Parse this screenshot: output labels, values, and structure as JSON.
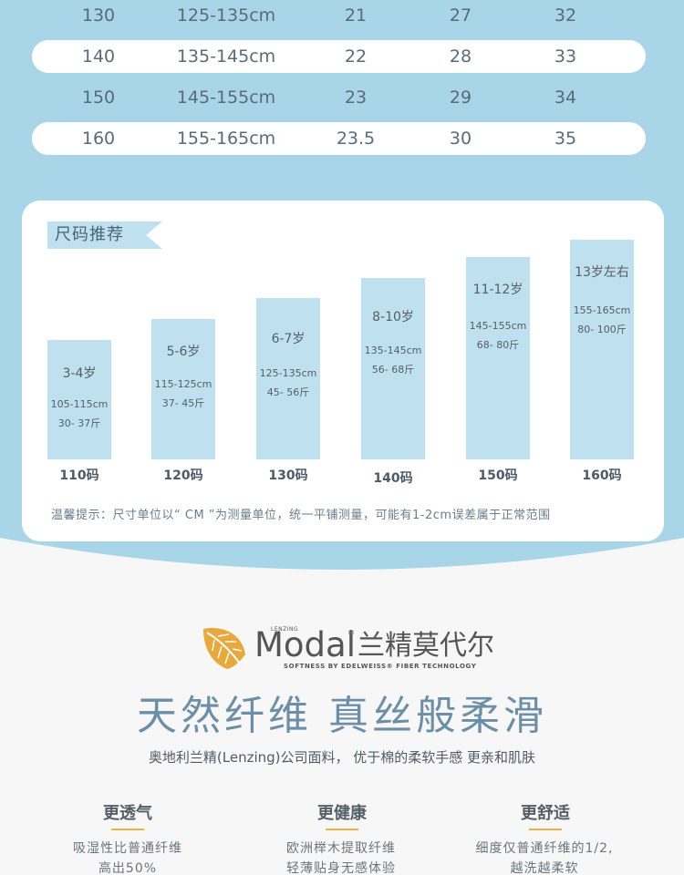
{
  "size_table": {
    "rows": [
      {
        "size": "130",
        "height": "125-135cm",
        "c3": "21",
        "c4": "27",
        "c5": "32"
      },
      {
        "size": "140",
        "height": "135-145cm",
        "c3": "22",
        "c4": "28",
        "c5": "33"
      },
      {
        "size": "150",
        "height": "145-155cm",
        "c3": "23",
        "c4": "29",
        "c5": "34"
      },
      {
        "size": "160",
        "height": "155-165cm",
        "c3": "23.5",
        "c4": "30",
        "c5": "35"
      }
    ]
  },
  "recommend": {
    "tag": "尺码推荐",
    "bars": [
      {
        "age": "3-4岁",
        "height": "105-115cm",
        "weight": "30- 37斤",
        "label": "110码"
      },
      {
        "age": "5-6岁",
        "height": "115-125cm",
        "weight": "37- 45斤",
        "label": "120码"
      },
      {
        "age": "6-7岁",
        "height": "125-135cm",
        "weight": "45- 56斤",
        "label": "130码"
      },
      {
        "age": "8-10岁",
        "height": "135-145cm",
        "weight": "56- 68斤",
        "label": "140码"
      },
      {
        "age": "11-12岁",
        "height": "145-155cm",
        "weight": "68- 80斤",
        "label": "150码"
      },
      {
        "age": "13岁左右",
        "height": "155-165cm",
        "weight": "80- 100斤",
        "label": "160码"
      }
    ],
    "hint": "温馨提示：尺寸单位以“ CM ”为测量单位，统一平铺测量，可能有1-2cm误差属于正常范围"
  },
  "brand": {
    "lenzing_small": "LENZING",
    "modal": "Modal",
    "modal_cn": "兰精莫代尔",
    "sub": "SOFTNESS BY EDELWEISS® FIBER TECHNOLOGY",
    "leaf_icon": "leaf-icon",
    "leaf_color": "#e8a93a"
  },
  "headline": "天然纤维 真丝般柔滑",
  "subline": "奥地利兰精(Lenzing)公司面料， 优于棉的柔软手感 更亲和肌肤",
  "features": [
    {
      "title": "更透气",
      "line1": "吸湿性比普通纤维",
      "line2": "高出50%"
    },
    {
      "title": "更健康",
      "line1": "欧洲榉木提取纤维",
      "line2": "轻薄贴身无感体验"
    },
    {
      "title": "更舒适",
      "line1": "细度仅普通纤维的1/2,",
      "line2": "越洗越柔软"
    }
  ],
  "colors": {
    "band": "#a8d5e8",
    "bar": "#bfe0ee",
    "accent": "#e8b44a"
  }
}
